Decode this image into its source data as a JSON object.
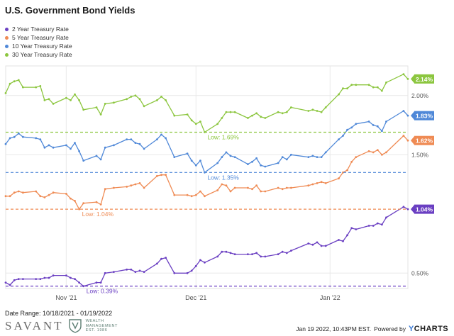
{
  "page": {
    "date_range": "Date Range: 10/18/2021 - 01/19/2022",
    "logo_word": "SAVANT",
    "logo_sub_1": "WEALTH",
    "logo_sub_2": "MANAGEMENT",
    "logo_sub_3": "EST. 1986",
    "timestamp": "Jan 19 2022, 10:43PM EST.",
    "powered_by": "Powered by",
    "brand": "CHARTS",
    "brand_prefix": "Y"
  },
  "chart_data": {
    "type": "line",
    "title": "U.S. Government Bond Yields",
    "x_start": "2021-10-18",
    "x_end": "2022-01-19",
    "x_ticks": [
      {
        "date": "2021-11-01",
        "label": "Nov '21"
      },
      {
        "date": "2021-12-01",
        "label": "Dec '21"
      },
      {
        "date": "2022-01-01",
        "label": "Jan '22"
      }
    ],
    "y_ticks": [
      {
        "value": 2.0,
        "label": "2.00%"
      },
      {
        "value": 1.5,
        "label": "1.50%"
      },
      {
        "value": 0.5,
        "label": "0.50%"
      }
    ],
    "ylim": [
      0.37,
      2.25
    ],
    "grid": true,
    "legend_position": "top-left",
    "series": [
      {
        "name": "2 Year Treasury Rate",
        "color": "#6a3fc2",
        "last_label": "1.04%",
        "low": {
          "value": 0.39,
          "label": "Low: 0.39%",
          "date": "2021-11-05"
        },
        "points": [
          [
            "2021-10-18",
            0.42
          ],
          [
            "2021-10-19",
            0.4
          ],
          [
            "2021-10-20",
            0.44
          ],
          [
            "2021-10-21",
            0.45
          ],
          [
            "2021-10-22",
            0.45
          ],
          [
            "2021-10-25",
            0.45
          ],
          [
            "2021-10-26",
            0.45
          ],
          [
            "2021-10-27",
            0.46
          ],
          [
            "2021-10-28",
            0.46
          ],
          [
            "2021-10-29",
            0.48
          ],
          [
            "2021-11-01",
            0.48
          ],
          [
            "2021-11-02",
            0.46
          ],
          [
            "2021-11-03",
            0.45
          ],
          [
            "2021-11-04",
            0.42
          ],
          [
            "2021-11-05",
            0.39
          ],
          [
            "2021-11-08",
            0.42
          ],
          [
            "2021-11-09",
            0.42
          ],
          [
            "2021-11-10",
            0.5
          ],
          [
            "2021-11-12",
            0.51
          ],
          [
            "2021-11-15",
            0.53
          ],
          [
            "2021-11-16",
            0.53
          ],
          [
            "2021-11-17",
            0.51
          ],
          [
            "2021-11-18",
            0.52
          ],
          [
            "2021-11-19",
            0.51
          ],
          [
            "2021-11-22",
            0.58
          ],
          [
            "2021-11-23",
            0.62
          ],
          [
            "2021-11-24",
            0.63
          ],
          [
            "2021-11-26",
            0.5
          ],
          [
            "2021-11-29",
            0.5
          ],
          [
            "2021-11-30",
            0.52
          ],
          [
            "2021-12-01",
            0.56
          ],
          [
            "2021-12-02",
            0.61
          ],
          [
            "2021-12-03",
            0.59
          ],
          [
            "2021-12-06",
            0.64
          ],
          [
            "2021-12-07",
            0.68
          ],
          [
            "2021-12-08",
            0.68
          ],
          [
            "2021-12-09",
            0.67
          ],
          [
            "2021-12-10",
            0.66
          ],
          [
            "2021-12-13",
            0.66
          ],
          [
            "2021-12-14",
            0.66
          ],
          [
            "2021-12-15",
            0.67
          ],
          [
            "2021-12-16",
            0.64
          ],
          [
            "2021-12-17",
            0.64
          ],
          [
            "2021-12-20",
            0.66
          ],
          [
            "2021-12-21",
            0.68
          ],
          [
            "2021-12-22",
            0.67
          ],
          [
            "2021-12-23",
            0.69
          ],
          [
            "2021-12-27",
            0.75
          ],
          [
            "2021-12-28",
            0.74
          ],
          [
            "2021-12-29",
            0.76
          ],
          [
            "2021-12-30",
            0.73
          ],
          [
            "2021-12-31",
            0.73
          ],
          [
            "2022-01-03",
            0.78
          ],
          [
            "2022-01-04",
            0.77
          ],
          [
            "2022-01-05",
            0.82
          ],
          [
            "2022-01-06",
            0.88
          ],
          [
            "2022-01-07",
            0.87
          ],
          [
            "2022-01-10",
            0.9
          ],
          [
            "2022-01-11",
            0.9
          ],
          [
            "2022-01-12",
            0.92
          ],
          [
            "2022-01-13",
            0.91
          ],
          [
            "2022-01-14",
            0.97
          ],
          [
            "2022-01-18",
            1.06
          ],
          [
            "2022-01-19",
            1.04
          ]
        ]
      },
      {
        "name": "5 Year Treasury Rate",
        "color": "#ef8b54",
        "last_label": "1.62%",
        "low": {
          "value": 1.04,
          "label": "Low: 1.04%",
          "date": "2021-11-04"
        },
        "points": [
          [
            "2021-10-18",
            1.15
          ],
          [
            "2021-10-19",
            1.15
          ],
          [
            "2021-10-20",
            1.18
          ],
          [
            "2021-10-21",
            1.19
          ],
          [
            "2021-10-22",
            1.18
          ],
          [
            "2021-10-25",
            1.19
          ],
          [
            "2021-10-26",
            1.15
          ],
          [
            "2021-10-27",
            1.14
          ],
          [
            "2021-10-28",
            1.16
          ],
          [
            "2021-10-29",
            1.18
          ],
          [
            "2021-11-01",
            1.17
          ],
          [
            "2021-11-02",
            1.13
          ],
          [
            "2021-11-03",
            1.11
          ],
          [
            "2021-11-04",
            1.04
          ],
          [
            "2021-11-05",
            1.09
          ],
          [
            "2021-11-08",
            1.1
          ],
          [
            "2021-11-09",
            1.08
          ],
          [
            "2021-11-10",
            1.21
          ],
          [
            "2021-11-12",
            1.22
          ],
          [
            "2021-11-15",
            1.23
          ],
          [
            "2021-11-16",
            1.24
          ],
          [
            "2021-11-17",
            1.25
          ],
          [
            "2021-11-18",
            1.26
          ],
          [
            "2021-11-19",
            1.22
          ],
          [
            "2021-11-22",
            1.32
          ],
          [
            "2021-11-23",
            1.33
          ],
          [
            "2021-11-24",
            1.33
          ],
          [
            "2021-11-26",
            1.16
          ],
          [
            "2021-11-29",
            1.16
          ],
          [
            "2021-11-30",
            1.15
          ],
          [
            "2021-12-01",
            1.16
          ],
          [
            "2021-12-02",
            1.19
          ],
          [
            "2021-12-03",
            1.15
          ],
          [
            "2021-12-06",
            1.2
          ],
          [
            "2021-12-07",
            1.25
          ],
          [
            "2021-12-08",
            1.24
          ],
          [
            "2021-12-09",
            1.19
          ],
          [
            "2021-12-10",
            1.22
          ],
          [
            "2021-12-13",
            1.22
          ],
          [
            "2021-12-14",
            1.21
          ],
          [
            "2021-12-15",
            1.24
          ],
          [
            "2021-12-16",
            1.19
          ],
          [
            "2021-12-17",
            1.19
          ],
          [
            "2021-12-20",
            1.22
          ],
          [
            "2021-12-21",
            1.21
          ],
          [
            "2021-12-22",
            1.22
          ],
          [
            "2021-12-23",
            1.22
          ],
          [
            "2021-12-27",
            1.24
          ],
          [
            "2021-12-28",
            1.25
          ],
          [
            "2021-12-29",
            1.26
          ],
          [
            "2021-12-30",
            1.27
          ],
          [
            "2021-12-31",
            1.26
          ],
          [
            "2022-01-03",
            1.3
          ],
          [
            "2022-01-04",
            1.35
          ],
          [
            "2022-01-05",
            1.37
          ],
          [
            "2022-01-06",
            1.44
          ],
          [
            "2022-01-07",
            1.48
          ],
          [
            "2022-01-10",
            1.53
          ],
          [
            "2022-01-11",
            1.52
          ],
          [
            "2022-01-12",
            1.54
          ],
          [
            "2022-01-13",
            1.5
          ],
          [
            "2022-01-14",
            1.52
          ],
          [
            "2022-01-18",
            1.66
          ],
          [
            "2022-01-19",
            1.62
          ]
        ]
      },
      {
        "name": "10 Year Treasury Rate",
        "color": "#4f88d8",
        "last_label": "1.83%",
        "low": {
          "value": 1.35,
          "label": "Low: 1.35%",
          "date": "2021-12-03"
        },
        "points": [
          [
            "2021-10-18",
            1.59
          ],
          [
            "2021-10-19",
            1.64
          ],
          [
            "2021-10-20",
            1.65
          ],
          [
            "2021-10-21",
            1.68
          ],
          [
            "2021-10-22",
            1.65
          ],
          [
            "2021-10-25",
            1.64
          ],
          [
            "2021-10-26",
            1.63
          ],
          [
            "2021-10-27",
            1.56
          ],
          [
            "2021-10-28",
            1.58
          ],
          [
            "2021-10-29",
            1.56
          ],
          [
            "2021-11-01",
            1.58
          ],
          [
            "2021-11-02",
            1.55
          ],
          [
            "2021-11-03",
            1.6
          ],
          [
            "2021-11-04",
            1.53
          ],
          [
            "2021-11-05",
            1.45
          ],
          [
            "2021-11-08",
            1.49
          ],
          [
            "2021-11-09",
            1.46
          ],
          [
            "2021-11-10",
            1.56
          ],
          [
            "2021-11-12",
            1.58
          ],
          [
            "2021-11-15",
            1.63
          ],
          [
            "2021-11-16",
            1.63
          ],
          [
            "2021-11-17",
            1.6
          ],
          [
            "2021-11-18",
            1.59
          ],
          [
            "2021-11-19",
            1.55
          ],
          [
            "2021-11-22",
            1.63
          ],
          [
            "2021-11-23",
            1.67
          ],
          [
            "2021-11-24",
            1.64
          ],
          [
            "2021-11-26",
            1.48
          ],
          [
            "2021-11-29",
            1.51
          ],
          [
            "2021-11-30",
            1.45
          ],
          [
            "2021-12-01",
            1.41
          ],
          [
            "2021-12-02",
            1.45
          ],
          [
            "2021-12-03",
            1.35
          ],
          [
            "2021-12-06",
            1.43
          ],
          [
            "2021-12-07",
            1.48
          ],
          [
            "2021-12-08",
            1.52
          ],
          [
            "2021-12-09",
            1.49
          ],
          [
            "2021-12-10",
            1.48
          ],
          [
            "2021-12-13",
            1.42
          ],
          [
            "2021-12-14",
            1.44
          ],
          [
            "2021-12-15",
            1.47
          ],
          [
            "2021-12-16",
            1.41
          ],
          [
            "2021-12-17",
            1.4
          ],
          [
            "2021-12-20",
            1.43
          ],
          [
            "2021-12-21",
            1.48
          ],
          [
            "2021-12-22",
            1.46
          ],
          [
            "2021-12-23",
            1.5
          ],
          [
            "2021-12-27",
            1.48
          ],
          [
            "2021-12-28",
            1.49
          ],
          [
            "2021-12-29",
            1.48
          ],
          [
            "2021-12-30",
            1.48
          ],
          [
            "2021-12-31",
            1.52
          ],
          [
            "2022-01-03",
            1.63
          ],
          [
            "2022-01-04",
            1.66
          ],
          [
            "2022-01-05",
            1.71
          ],
          [
            "2022-01-06",
            1.73
          ],
          [
            "2022-01-07",
            1.76
          ],
          [
            "2022-01-10",
            1.78
          ],
          [
            "2022-01-11",
            1.75
          ],
          [
            "2022-01-12",
            1.74
          ],
          [
            "2022-01-13",
            1.7
          ],
          [
            "2022-01-14",
            1.78
          ],
          [
            "2022-01-18",
            1.87
          ],
          [
            "2022-01-19",
            1.83
          ]
        ]
      },
      {
        "name": "30 Year Treasury Rate",
        "color": "#8cc63f",
        "last_label": "2.14%",
        "low": {
          "value": 1.69,
          "label": "Low: 1.69%",
          "date": "2021-12-03"
        },
        "points": [
          [
            "2021-10-18",
            2.02
          ],
          [
            "2021-10-19",
            2.1
          ],
          [
            "2021-10-20",
            2.12
          ],
          [
            "2021-10-21",
            2.13
          ],
          [
            "2021-10-22",
            2.07
          ],
          [
            "2021-10-25",
            2.07
          ],
          [
            "2021-10-26",
            2.08
          ],
          [
            "2021-10-27",
            1.96
          ],
          [
            "2021-10-28",
            1.97
          ],
          [
            "2021-10-29",
            1.93
          ],
          [
            "2021-11-01",
            1.98
          ],
          [
            "2021-11-02",
            1.96
          ],
          [
            "2021-11-03",
            2.01
          ],
          [
            "2021-11-04",
            1.96
          ],
          [
            "2021-11-05",
            1.88
          ],
          [
            "2021-11-08",
            1.9
          ],
          [
            "2021-11-09",
            1.84
          ],
          [
            "2021-11-10",
            1.93
          ],
          [
            "2021-11-12",
            1.94
          ],
          [
            "2021-11-15",
            1.97
          ],
          [
            "2021-11-16",
            1.99
          ],
          [
            "2021-11-17",
            2.0
          ],
          [
            "2021-11-18",
            1.97
          ],
          [
            "2021-11-19",
            1.91
          ],
          [
            "2021-11-22",
            1.96
          ],
          [
            "2021-11-23",
            1.99
          ],
          [
            "2021-11-24",
            1.96
          ],
          [
            "2021-11-26",
            1.83
          ],
          [
            "2021-11-29",
            1.84
          ],
          [
            "2021-11-30",
            1.79
          ],
          [
            "2021-12-01",
            1.76
          ],
          [
            "2021-12-02",
            1.78
          ],
          [
            "2021-12-03",
            1.69
          ],
          [
            "2021-12-06",
            1.76
          ],
          [
            "2021-12-07",
            1.81
          ],
          [
            "2021-12-08",
            1.86
          ],
          [
            "2021-12-09",
            1.86
          ],
          [
            "2021-12-10",
            1.86
          ],
          [
            "2021-12-13",
            1.81
          ],
          [
            "2021-12-14",
            1.83
          ],
          [
            "2021-12-15",
            1.85
          ],
          [
            "2021-12-16",
            1.82
          ],
          [
            "2021-12-17",
            1.81
          ],
          [
            "2021-12-20",
            1.86
          ],
          [
            "2021-12-21",
            1.85
          ],
          [
            "2021-12-22",
            1.86
          ],
          [
            "2021-12-23",
            1.9
          ],
          [
            "2021-12-27",
            1.87
          ],
          [
            "2021-12-28",
            1.88
          ],
          [
            "2021-12-29",
            1.87
          ],
          [
            "2021-12-30",
            1.86
          ],
          [
            "2021-12-31",
            1.9
          ],
          [
            "2022-01-03",
            2.01
          ],
          [
            "2022-01-04",
            2.06
          ],
          [
            "2022-01-05",
            2.06
          ],
          [
            "2022-01-06",
            2.09
          ],
          [
            "2022-01-07",
            2.09
          ],
          [
            "2022-01-10",
            2.09
          ],
          [
            "2022-01-11",
            2.07
          ],
          [
            "2022-01-12",
            2.07
          ],
          [
            "2022-01-13",
            2.04
          ],
          [
            "2022-01-14",
            2.11
          ],
          [
            "2022-01-18",
            2.18
          ],
          [
            "2022-01-19",
            2.14
          ]
        ]
      }
    ]
  }
}
